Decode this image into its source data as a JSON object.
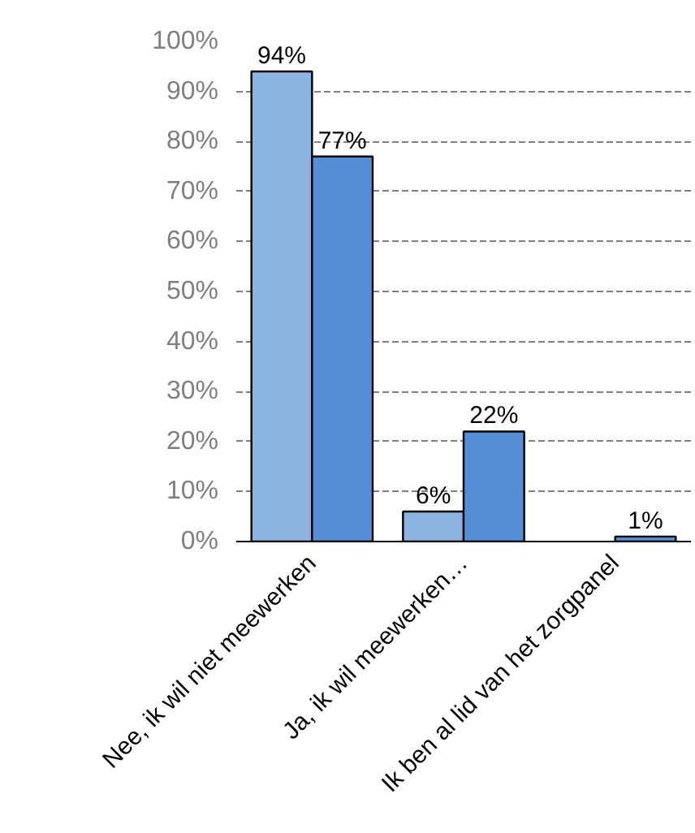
{
  "chart_data": {
    "type": "bar",
    "categories": [
      "Nee, ik wil niet meewerken",
      "Ja, ik wil meewerken…",
      "Ik ben al lid van het zorgpanel"
    ],
    "series": [
      {
        "color": "#8db3e2",
        "values": [
          94,
          6,
          null
        ],
        "value_labels": [
          "94%",
          "6%",
          null
        ]
      },
      {
        "color": "#558ed5",
        "values": [
          77,
          22,
          1
        ],
        "value_labels": [
          "77%",
          "22%",
          "1%"
        ]
      }
    ],
    "ylim": [
      0,
      100
    ],
    "yticks": [
      {
        "value": 0,
        "label": "0%"
      },
      {
        "value": 10,
        "label": "10%"
      },
      {
        "value": 20,
        "label": "20%"
      },
      {
        "value": 30,
        "label": "30%"
      },
      {
        "value": 40,
        "label": "40%"
      },
      {
        "value": 50,
        "label": "50%"
      },
      {
        "value": 60,
        "label": "60%"
      },
      {
        "value": 70,
        "label": "70%"
      },
      {
        "value": 80,
        "label": "80%"
      },
      {
        "value": 90,
        "label": "90%"
      },
      {
        "value": 100,
        "label": "100%"
      }
    ],
    "grid": "y"
  }
}
